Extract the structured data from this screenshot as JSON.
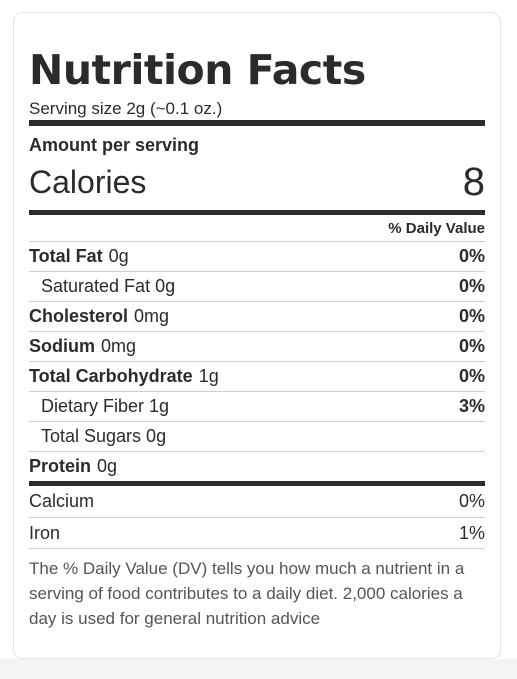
{
  "title": "Nutrition Facts",
  "serving_size": "Serving size 2g (~0.1 oz.)",
  "amount_per_serving": "Amount per serving",
  "calories": {
    "label": "Calories",
    "value": "8"
  },
  "daily_value_header": "% Daily Value",
  "nutrients": [
    {
      "name": "Total Fat",
      "amount": "0g",
      "dv": "0%"
    },
    {
      "name": "Saturated Fat 0g",
      "dv": "0%"
    },
    {
      "name": "Cholesterol",
      "amount": "0mg",
      "dv": "0%"
    },
    {
      "name": "Sodium",
      "amount": "0mg",
      "dv": "0%"
    },
    {
      "name": "Total Carbohydrate",
      "amount": "1g",
      "dv": "0%"
    },
    {
      "name": "Dietary Fiber 1g",
      "dv": "3%"
    },
    {
      "name": "Total Sugars 0g",
      "dv": ""
    },
    {
      "name": "Protein",
      "amount": "0g",
      "dv": ""
    }
  ],
  "minerals": [
    {
      "name": "Calcium",
      "dv": "0%"
    },
    {
      "name": "Iron",
      "dv": "1%"
    }
  ],
  "footnote": "The % Daily Value (DV) tells you how much a nutrient in a serving of food contributes to a daily diet. 2,000 calories a day is used for general nutrition advice"
}
